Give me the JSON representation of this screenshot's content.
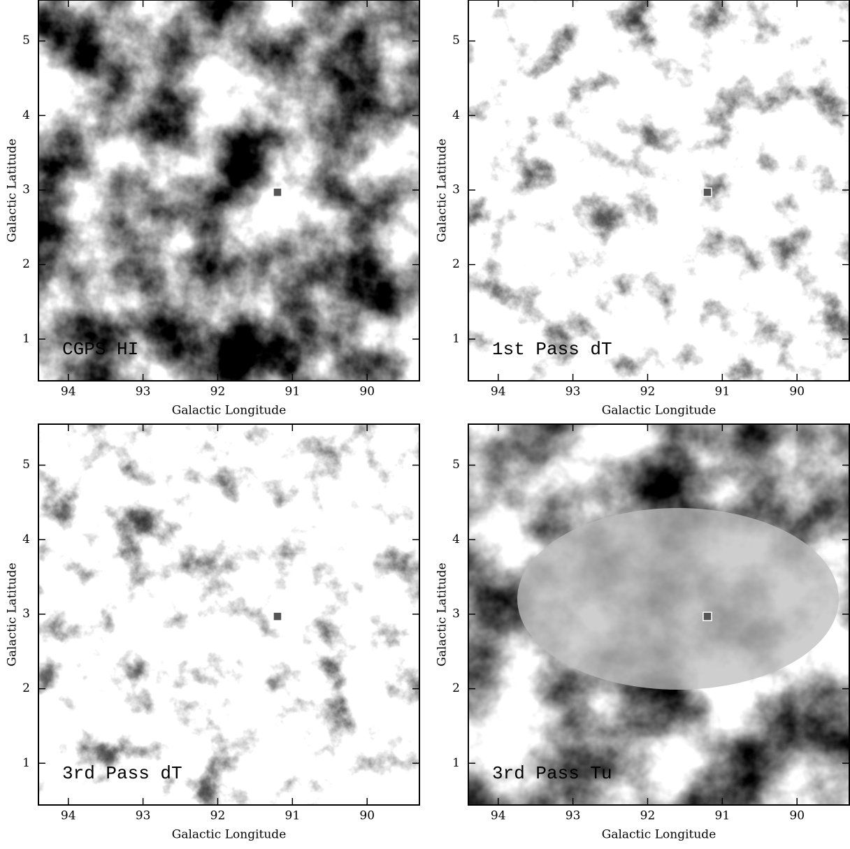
{
  "chart_data": [
    {
      "type": "image",
      "label": "CGPS HI",
      "xlabel": "Galactic Longitude",
      "ylabel": "Galactic Latitude",
      "xlim": [
        94.4,
        89.3
      ],
      "ylim": [
        0.44,
        5.55
      ],
      "xticks": [
        94,
        93,
        92,
        91,
        90
      ],
      "yticks": [
        1,
        2,
        3,
        4,
        5
      ],
      "points": {
        "x": [
          91.2
        ],
        "y": [
          2.97
        ]
      }
    },
    {
      "type": "image",
      "label": "1st Pass dT",
      "xlabel": "Galactic Longitude",
      "ylabel": "Galactic Latitude",
      "xlim": [
        94.4,
        89.3
      ],
      "ylim": [
        0.44,
        5.55
      ],
      "xticks": [
        94,
        93,
        92,
        91,
        90
      ],
      "yticks": [
        1,
        2,
        3,
        4,
        5
      ],
      "points": {
        "x": [
          91.2
        ],
        "y": [
          2.97
        ]
      }
    },
    {
      "type": "image",
      "label": "3rd Pass dT",
      "xlabel": "Galactic Longitude",
      "ylabel": "Galactic Latitude",
      "xlim": [
        94.4,
        89.3
      ],
      "ylim": [
        0.44,
        5.55
      ],
      "xticks": [
        94,
        93,
        92,
        91,
        90
      ],
      "yticks": [
        1,
        2,
        3,
        4,
        5
      ],
      "points": {
        "x": [
          91.2
        ],
        "y": [
          2.97
        ]
      }
    },
    {
      "type": "image",
      "label": "3rd Pass Tu",
      "xlabel": "Galactic Longitude",
      "ylabel": "Galactic Latitude",
      "xlim": [
        94.4,
        89.3
      ],
      "ylim": [
        0.44,
        5.55
      ],
      "xticks": [
        94,
        93,
        92,
        91,
        90
      ],
      "yticks": [
        1,
        2,
        3,
        4,
        5
      ],
      "points": {
        "x": [
          91.2
        ],
        "y": [
          2.97
        ]
      }
    }
  ]
}
